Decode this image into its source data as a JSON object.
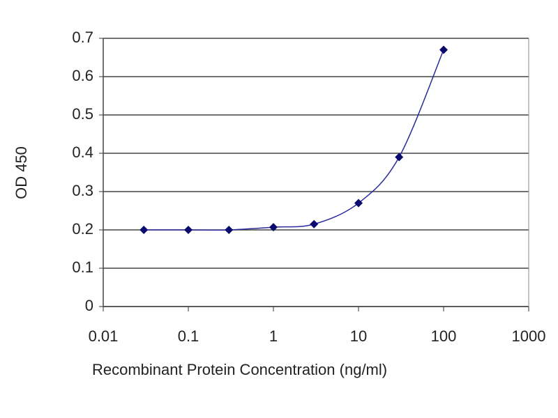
{
  "chart_data": {
    "type": "line",
    "x_label": "Recombinant Protein Concentration (ng/ml)",
    "y_label": "OD 450",
    "x": [
      0.03,
      0.1,
      0.3,
      1,
      3,
      10,
      30,
      100
    ],
    "values": [
      0.2,
      0.2,
      0.2,
      0.207,
      0.215,
      0.27,
      0.39,
      0.67
    ],
    "color": "#2a2a9c",
    "marker_color": "#0a0a6e",
    "x_log": true,
    "xlim": [
      0.01,
      1000
    ],
    "xticks": [
      0.01,
      0.1,
      1,
      10,
      100,
      1000
    ],
    "ylim": [
      0,
      0.7
    ],
    "yticks": [
      0,
      0.1,
      0.2,
      0.3,
      0.4,
      0.5,
      0.6,
      0.7
    ],
    "grid": true
  }
}
